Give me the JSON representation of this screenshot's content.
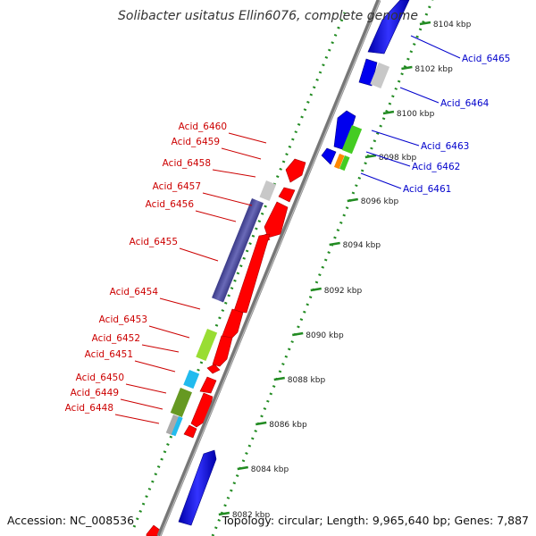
{
  "title": "Solibacter usitatus Ellin6076, complete genome",
  "accession": "Accession: NC_008536",
  "topology": "Topology: circular; Length: 9,965,640 bp; Genes: 7,887",
  "ticks": [
    {
      "label": "8104 kbp",
      "kbp": 8104
    },
    {
      "label": "8102 kbp",
      "kbp": 8102
    },
    {
      "label": "8100 kbp",
      "kbp": 8100
    },
    {
      "label": "8098 kbp",
      "kbp": 8098
    },
    {
      "label": "8096 kbp",
      "kbp": 8096
    },
    {
      "label": "8094 kbp",
      "kbp": 8094
    },
    {
      "label": "8092 kbp",
      "kbp": 8092
    },
    {
      "label": "8090 kbp",
      "kbp": 8090
    },
    {
      "label": "8088 kbp",
      "kbp": 8088
    },
    {
      "label": "8086 kbp",
      "kbp": 8086
    },
    {
      "label": "8084 kbp",
      "kbp": 8084
    },
    {
      "label": "8082 kbp",
      "kbp": 8082
    }
  ],
  "labels_left": [
    {
      "text": "Acid_6460"
    },
    {
      "text": "Acid_6459"
    },
    {
      "text": "Acid_6458"
    },
    {
      "text": "Acid_6457"
    },
    {
      "text": "Acid_6456"
    },
    {
      "text": "Acid_6455"
    },
    {
      "text": "Acid_6454"
    },
    {
      "text": "Acid_6453"
    },
    {
      "text": "Acid_6452"
    },
    {
      "text": "Acid_6451"
    },
    {
      "text": "Acid_6450"
    },
    {
      "text": "Acid_6449"
    },
    {
      "text": "Acid_6448"
    }
  ],
  "labels_right": [
    {
      "text": "Acid_6465"
    },
    {
      "text": "Acid_6464"
    },
    {
      "text": "Acid_6463"
    },
    {
      "text": "Acid_6462"
    },
    {
      "text": "Acid_6461"
    }
  ],
  "colors": {
    "reverse_label": "#cc0000",
    "forward_label": "#0000cc",
    "reverse_gene": "#ff0000",
    "forward_gene": "#0000ee",
    "backbone": "#888888",
    "tick": "#228b22",
    "cog_purple": "#4b4b9c",
    "cog_grey": "#c8c8c8",
    "cog_green": "#44cc22",
    "cog_lime": "#99dd33",
    "cog_olive": "#669922",
    "cog_orange": "#ff8800",
    "cog_cyan": "#22bbee"
  }
}
